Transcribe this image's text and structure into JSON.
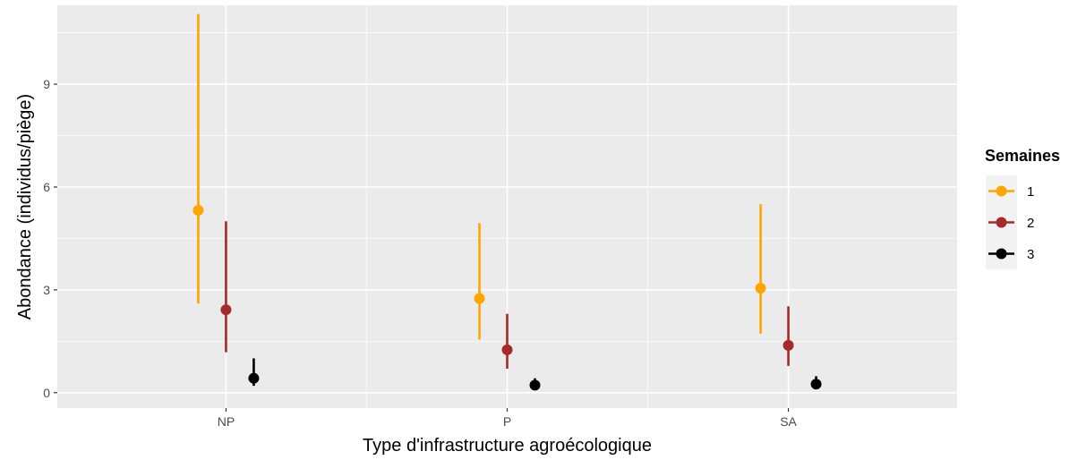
{
  "chart_data": {
    "type": "pointrange",
    "xlabel": "Type d'infrastructure agroécologique",
    "ylabel": "Abondance (individus/piège)",
    "categories": [
      "NP",
      "P",
      "SA"
    ],
    "ylim": [
      -0.45,
      11.3
    ],
    "yticks": [
      0,
      3,
      6,
      9
    ],
    "grid": true,
    "legend": {
      "title": "Semaines",
      "position": "right"
    },
    "series": [
      {
        "name": "1",
        "color": "#FFA500",
        "points": [
          {
            "category": "NP",
            "y": 5.32,
            "ymin": 2.6,
            "ymax": 11.05
          },
          {
            "category": "P",
            "y": 2.75,
            "ymin": 1.55,
            "ymax": 4.95
          },
          {
            "category": "SA",
            "y": 3.05,
            "ymin": 1.72,
            "ymax": 5.5
          }
        ]
      },
      {
        "name": "2",
        "color": "#A52A2A",
        "points": [
          {
            "category": "NP",
            "y": 2.42,
            "ymin": 1.18,
            "ymax": 5.0
          },
          {
            "category": "P",
            "y": 1.25,
            "ymin": 0.7,
            "ymax": 2.3
          },
          {
            "category": "SA",
            "y": 1.38,
            "ymin": 0.78,
            "ymax": 2.52
          }
        ]
      },
      {
        "name": "3",
        "color": "#000000",
        "points": [
          {
            "category": "NP",
            "y": 0.42,
            "ymin": 0.2,
            "ymax": 1.0
          },
          {
            "category": "P",
            "y": 0.22,
            "ymin": 0.12,
            "ymax": 0.42
          },
          {
            "category": "SA",
            "y": 0.25,
            "ymin": 0.12,
            "ymax": 0.48
          }
        ]
      }
    ]
  }
}
